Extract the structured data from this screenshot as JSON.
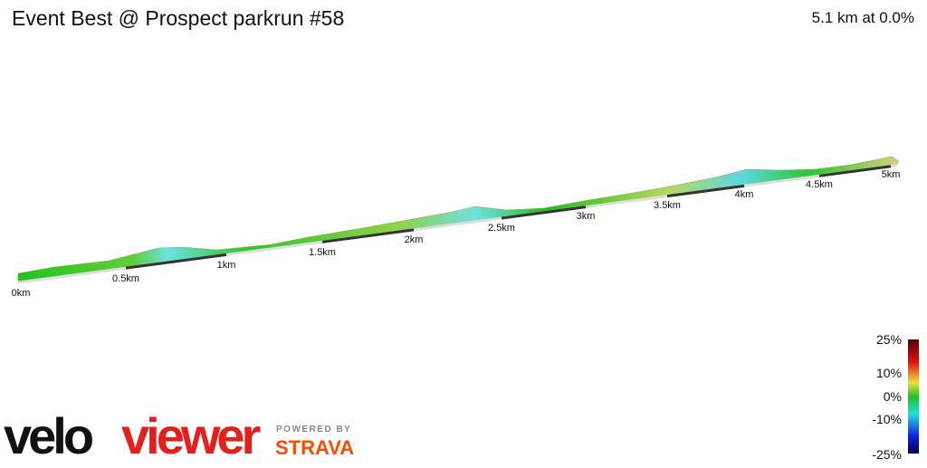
{
  "header": {
    "title": "Event Best @ Prospect parkrun #58",
    "summary": "5.1 km at 0.0%"
  },
  "distance_labels": [
    "0km",
    "0.5km",
    "1km",
    "1.5km",
    "2km",
    "2.5km",
    "3km",
    "3.5km",
    "4km",
    "4.5km",
    "5km"
  ],
  "gradient_scale": {
    "labels": [
      "25%",
      "10%",
      "0%",
      "-10%",
      "-25%"
    ]
  },
  "branding": {
    "logo_start": "velo",
    "logo_end": "viewer",
    "powered_by": "POWERED BY",
    "partner": "STRAVA"
  }
}
